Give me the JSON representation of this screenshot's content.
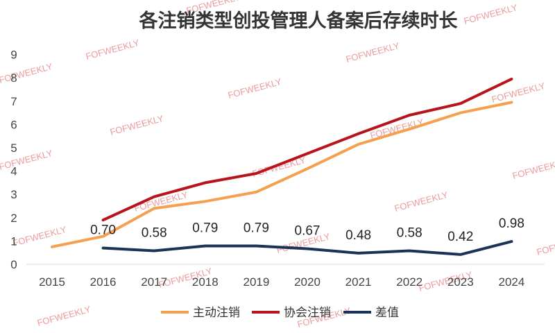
{
  "watermark": "FOFWEEKLY",
  "chart_data": {
    "type": "line",
    "title": "各注销类型创投管理人备案后存续时长",
    "x": [
      "2015",
      "2016",
      "2017",
      "2018",
      "2019",
      "2020",
      "2021",
      "2022",
      "2023",
      "2024"
    ],
    "y_ticks": [
      "0",
      "1",
      "2",
      "3",
      "4",
      "5",
      "6",
      "7",
      "8",
      "9"
    ],
    "ylim": [
      0,
      9
    ],
    "grid": false,
    "legend_position": "bottom",
    "series": [
      {
        "name": "主动注销",
        "color": "#f4a04f",
        "values": [
          0.75,
          1.2,
          2.4,
          2.7,
          3.1,
          4.1,
          5.15,
          5.8,
          6.5,
          6.95
        ]
      },
      {
        "name": "协会注销",
        "color": "#b8141c",
        "values": [
          null,
          1.9,
          2.9,
          3.5,
          3.9,
          4.75,
          5.6,
          6.4,
          6.9,
          7.95
        ]
      },
      {
        "name": "差值",
        "color": "#1a3357",
        "values": [
          null,
          0.7,
          0.58,
          0.79,
          0.79,
          0.67,
          0.48,
          0.58,
          0.42,
          0.98
        ],
        "labels": [
          null,
          "0.70",
          "0.58",
          "0.79",
          "0.79",
          "0.67",
          "0.48",
          "0.58",
          "0.42",
          "0.98"
        ]
      }
    ]
  }
}
